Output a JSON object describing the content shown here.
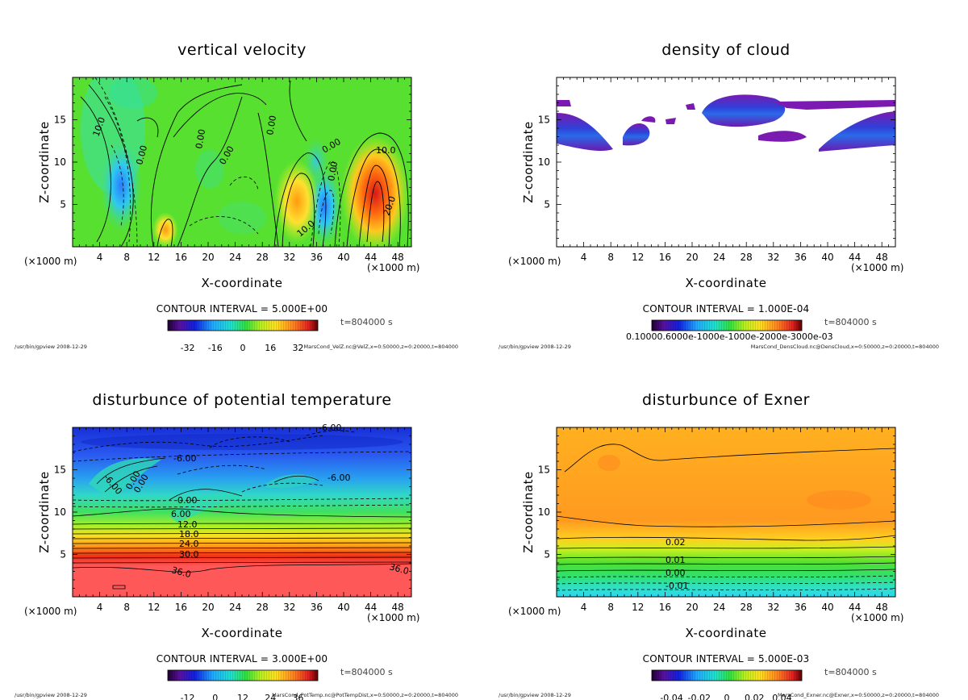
{
  "chart_data": [
    {
      "type": "contour",
      "id": "velz",
      "title": "vertical velocity",
      "xlabel": "X-coordinate",
      "ylabel": "Z-coordinate",
      "xunit_left": "(×1000 m)",
      "xunit_right": "(×1000 m)",
      "xlim": [
        0,
        50
      ],
      "ylim": [
        0,
        20
      ],
      "xticks": [
        4,
        8,
        12,
        16,
        20,
        24,
        28,
        32,
        36,
        40,
        44,
        48
      ],
      "yticks": [
        5,
        10,
        15
      ],
      "contour_interval": "CONTOUR INTERVAL = 5.000E+00",
      "time": "t=804000 s",
      "colorbar": {
        "ticks": [
          "-32",
          "-16",
          "0",
          "16",
          "32"
        ],
        "palette": "rainbow"
      },
      "contour_labels": [
        "10.0",
        "0.00",
        "0.00",
        "0.00",
        "0.00",
        "0.00",
        "10.0",
        "10.0",
        "20.0",
        "0.00"
      ],
      "footer_left": "/usr/bin/gpview  2008-12-29",
      "footer_right": "MarsCond_VelZ.nc@VelZ,x=0:50000,z=0:20000,t=804000"
    },
    {
      "type": "contour",
      "id": "cloud",
      "title": "density of cloud",
      "xlabel": "X-coordinate",
      "ylabel": "Z-coordinate",
      "xunit_left": "(×1000 m)",
      "xunit_right": "(×1000 m)",
      "xlim": [
        0,
        50
      ],
      "ylim": [
        0,
        20
      ],
      "xticks": [
        4,
        8,
        12,
        16,
        20,
        24,
        28,
        32,
        36,
        40,
        44,
        48
      ],
      "yticks": [
        5,
        10,
        15
      ],
      "contour_interval": "CONTOUR INTERVAL = 1.000E-04",
      "time": "t=804000 s",
      "colorbar": {
        "ticks_overlapped": "0.10000.6000e-1000e-1000e-2000e-3000e-03",
        "palette": "rainbow"
      },
      "contour_labels": [],
      "footer_left": "/usr/bin/gpview  2008-12-29",
      "footer_right": "MarsCond_DensCloud.nc@DensCloud,x=0:50000,z=0:20000,t=804000"
    },
    {
      "type": "contour",
      "id": "pottemp",
      "title": "disturbunce of potential temperature",
      "xlabel": "X-coordinate",
      "ylabel": "Z-coordinate",
      "xunit_left": "(×1000 m)",
      "xunit_right": "(×1000 m)",
      "xlim": [
        0,
        50
      ],
      "ylim": [
        0,
        20
      ],
      "xticks": [
        4,
        8,
        12,
        16,
        20,
        24,
        28,
        32,
        36,
        40,
        44,
        48
      ],
      "yticks": [
        5,
        10,
        15
      ],
      "contour_interval": "CONTOUR INTERVAL = 3.000E+00",
      "time": "t=804000 s",
      "colorbar": {
        "ticks": [
          "-12",
          "0",
          "12",
          "24",
          "36"
        ],
        "palette": "rainbow"
      },
      "contour_labels": [
        "-6.00",
        "-6.00",
        "-6.00",
        "-6.00",
        "0.00",
        "0.00",
        "6.00",
        "12.0",
        "18.0",
        "24.0",
        "30.0",
        "36.0",
        "36.0",
        "0.00"
      ],
      "footer_left": "/usr/bin/gpview  2008-12-29",
      "footer_right": "MarsCond_PotTemp.nc@PotTempDist,x=0:50000,z=0:20000,t=804000"
    },
    {
      "type": "contour",
      "id": "exner",
      "title": "disturbunce of Exner",
      "xlabel": "X-coordinate",
      "ylabel": "Z-coordinate",
      "xunit_left": "(×1000 m)",
      "xunit_right": "(×1000 m)",
      "xlim": [
        0,
        50
      ],
      "ylim": [
        0,
        20
      ],
      "xticks": [
        4,
        8,
        12,
        16,
        20,
        24,
        28,
        32,
        36,
        40,
        44,
        48
      ],
      "yticks": [
        5,
        10,
        15
      ],
      "contour_interval": "CONTOUR INTERVAL = 5.000E-03",
      "time": "t=804000 s",
      "colorbar": {
        "ticks": [
          "-0.04",
          "-0.02",
          "0",
          "0.02",
          "0.04"
        ],
        "palette": "rainbow"
      },
      "contour_labels": [
        "0.02",
        "0.01",
        "0.00",
        "-0.01"
      ],
      "footer_left": "/usr/bin/gpview  2008-12-29",
      "footer_right": "MarsCond_Exner.nc@Exner,x=0:50000,z=0:20000,t=804000"
    }
  ]
}
